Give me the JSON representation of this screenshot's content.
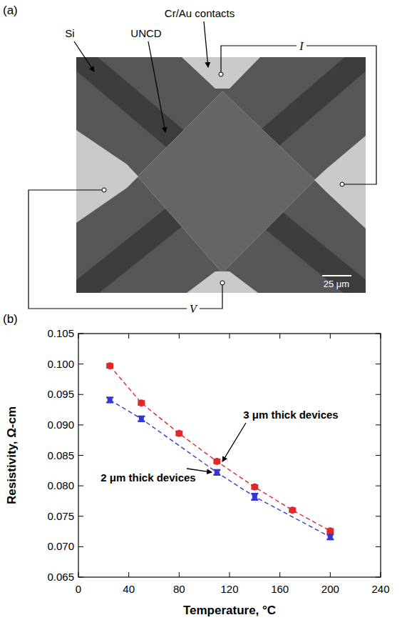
{
  "figure": {
    "panel_labels": [
      "(a)",
      "(b)"
    ]
  },
  "image": {
    "labels": {
      "contacts": "Cr/Au contacts",
      "si": "Si",
      "uncd": "UNCD",
      "current": "I",
      "voltage": "V",
      "scale_bar": "25 μm"
    }
  },
  "chart_data": {
    "type": "line",
    "x_label": "Temperature, °C",
    "y_label": "Resistivity, Ω-cm",
    "xlim": [
      0,
      240
    ],
    "xticks": [
      0,
      40,
      80,
      120,
      160,
      200,
      240
    ],
    "ylim": [
      0.065,
      0.105
    ],
    "yticks": [
      0.065,
      {
        "value": 0.07,
        "label": "0.070"
      },
      0.075,
      {
        "value": 0.08,
        "label": "0.080"
      },
      0.085,
      {
        "value": 0.09,
        "label": "0.090"
      },
      0.095,
      {
        "value": 0.1,
        "label": "0.100"
      },
      0.105
    ],
    "grid": false,
    "series": [
      {
        "name": "3 μm thick devices",
        "color": "#e0282b",
        "marker": "circle",
        "line_style": "dashed",
        "x": [
          25,
          50,
          80,
          110,
          140,
          170,
          200
        ],
        "values": [
          0.0997,
          0.0936,
          0.0886,
          0.084,
          0.0798,
          0.076,
          0.0726
        ],
        "errors": [
          0.0003,
          0.0003,
          0.0003,
          0.0003,
          0.0003,
          0.0003,
          0.0003
        ]
      },
      {
        "name": "2 μm thick devices",
        "color": "#3535d0",
        "marker": "square",
        "line_style": "dashed",
        "x": [
          25,
          50,
          110,
          140,
          200
        ],
        "values": [
          0.0941,
          0.091,
          0.0822,
          0.0782,
          0.0716
        ],
        "errors": [
          0.0004,
          0.0004,
          0.0004,
          0.0005,
          0.0004
        ]
      }
    ]
  }
}
